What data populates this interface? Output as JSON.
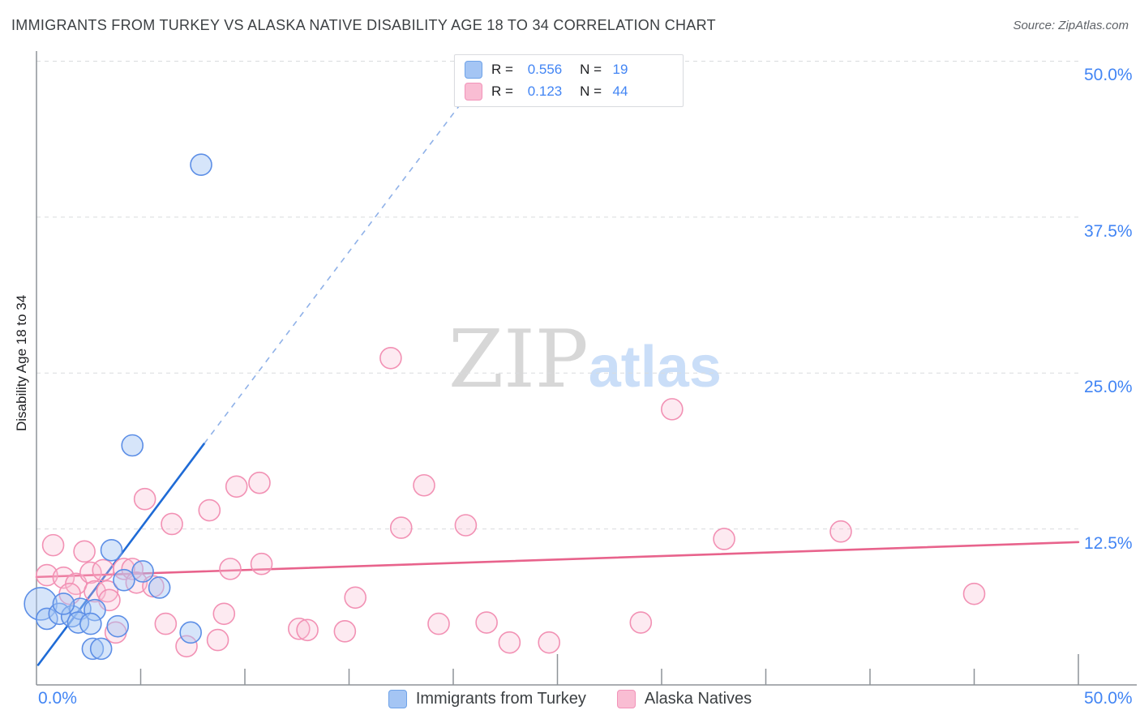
{
  "title": "IMMIGRANTS FROM TURKEY VS ALASKA NATIVE DISABILITY AGE 18 TO 34 CORRELATION CHART",
  "source": "Source: ZipAtlas.com",
  "watermark": {
    "zip": "ZIP",
    "atlas": "atlas"
  },
  "y_axis_title": "Disability Age 18 to 34",
  "legend_box": {
    "series": [
      {
        "r_label": "R =",
        "r_value": "0.556",
        "n_label": "N =",
        "n_value": "19"
      },
      {
        "r_label": "R =",
        "r_value": "0.123",
        "n_label": "N =",
        "n_value": "44"
      }
    ]
  },
  "bottom_legend": [
    {
      "label": "Immigrants from Turkey"
    },
    {
      "label": "Alaska Natives"
    }
  ],
  "axis_labels": {
    "x_left": "0.0%",
    "x_right": "50.0%",
    "right": [
      "50.0%",
      "37.5%",
      "25.0%",
      "12.5%"
    ]
  },
  "colors": {
    "blue_point_stroke": "#5c8ee6",
    "blue_point_fill": "rgba(164,197,243,0.45)",
    "pink_point_stroke": "#f291b4",
    "pink_point_fill": "rgba(249,189,211,0.32)",
    "blue_trend": "#1f6bd6",
    "blue_trend_dashed": "#8fb1e8",
    "pink_trend": "#e8638c",
    "gridline": "#d9dbde",
    "axis": "#8e9398",
    "label_blue": "#4285f4",
    "legend_blue_fill": "#a4c5f4",
    "legend_blue_stroke": "#6fa3e8",
    "legend_pink_fill": "#f9bdd3",
    "legend_pink_stroke": "#f293b9"
  },
  "chart_data": {
    "type": "scatter",
    "title": "IMMIGRANTS FROM TURKEY VS ALASKA NATIVE DISABILITY AGE 18 TO 34 CORRELATION CHART",
    "xlabel": "Immigrants from Turkey (%)",
    "ylabel": "Disability Age 18 to 34",
    "x_range_percent": [
      0,
      50
    ],
    "y_range_percent": [
      0,
      50
    ],
    "x_ticks_percent": [
      5,
      10,
      15,
      20,
      25,
      30,
      35,
      40,
      45,
      50
    ],
    "major_x_ticks_percent": [
      25,
      50
    ],
    "y_gridlines_percent": [
      12.5,
      25,
      37.5,
      50
    ],
    "grid": "dashed-horizontal",
    "legend_position": "top-center",
    "series": [
      {
        "name": "Immigrants from Turkey",
        "R": 0.556,
        "N": 19,
        "points": [
          [
            0.2,
            6.5,
            20
          ],
          [
            0.5,
            5.3
          ],
          [
            1.1,
            5.7
          ],
          [
            1.7,
            5.5
          ],
          [
            2.1,
            6.1
          ],
          [
            2.8,
            6.0
          ],
          [
            1.3,
            6.5
          ],
          [
            2.0,
            5.0
          ],
          [
            2.6,
            4.9
          ],
          [
            3.9,
            4.7
          ],
          [
            2.7,
            2.9
          ],
          [
            3.1,
            2.9
          ],
          [
            3.6,
            10.8
          ],
          [
            4.2,
            8.4
          ],
          [
            5.1,
            9.1
          ],
          [
            5.9,
            7.8
          ],
          [
            7.4,
            4.2
          ],
          [
            4.6,
            19.2
          ],
          [
            7.9,
            41.7
          ]
        ]
      },
      {
        "name": "Alaska Natives",
        "R": 0.123,
        "N": 44,
        "points": [
          [
            0.8,
            11.2
          ],
          [
            2.3,
            10.7
          ],
          [
            0.5,
            8.8
          ],
          [
            1.3,
            8.6
          ],
          [
            1.9,
            8.1
          ],
          [
            2.6,
            9.0
          ],
          [
            3.2,
            9.2
          ],
          [
            4.2,
            9.3
          ],
          [
            4.6,
            9.3
          ],
          [
            1.6,
            7.3
          ],
          [
            2.8,
            7.5
          ],
          [
            3.4,
            7.5
          ],
          [
            4.8,
            8.2
          ],
          [
            5.6,
            7.9
          ],
          [
            3.5,
            6.8
          ],
          [
            6.2,
            4.9
          ],
          [
            3.8,
            4.2
          ],
          [
            5.2,
            14.9
          ],
          [
            7.2,
            3.1
          ],
          [
            8.7,
            3.6
          ],
          [
            9.0,
            5.7
          ],
          [
            6.5,
            12.9
          ],
          [
            8.3,
            14.0
          ],
          [
            9.6,
            15.9
          ],
          [
            10.7,
            16.2
          ],
          [
            9.3,
            9.3
          ],
          [
            10.8,
            9.7
          ],
          [
            12.6,
            4.5
          ],
          [
            13.0,
            4.4
          ],
          [
            14.8,
            4.3
          ],
          [
            15.3,
            7.0
          ],
          [
            17.0,
            26.2
          ],
          [
            17.5,
            12.6
          ],
          [
            18.6,
            16.0
          ],
          [
            20.6,
            12.8
          ],
          [
            19.3,
            4.9
          ],
          [
            21.6,
            5.0
          ],
          [
            22.7,
            3.4
          ],
          [
            24.6,
            3.4
          ],
          [
            29.0,
            5.0
          ],
          [
            30.5,
            22.1
          ],
          [
            33.0,
            11.7
          ],
          [
            38.6,
            12.3
          ],
          [
            45.0,
            7.3
          ]
        ]
      }
    ],
    "trend_lines": [
      {
        "series": "Immigrants from Turkey",
        "solid": [
          [
            0.08,
            1.6
          ],
          [
            8.05,
            19.35
          ]
        ],
        "dashed_extension": [
          [
            8.05,
            19.35
          ],
          [
            21.9,
            50.0
          ]
        ]
      },
      {
        "series": "Alaska Natives",
        "solid": [
          [
            0.0,
            8.65
          ],
          [
            50.0,
            11.45
          ]
        ]
      }
    ]
  }
}
